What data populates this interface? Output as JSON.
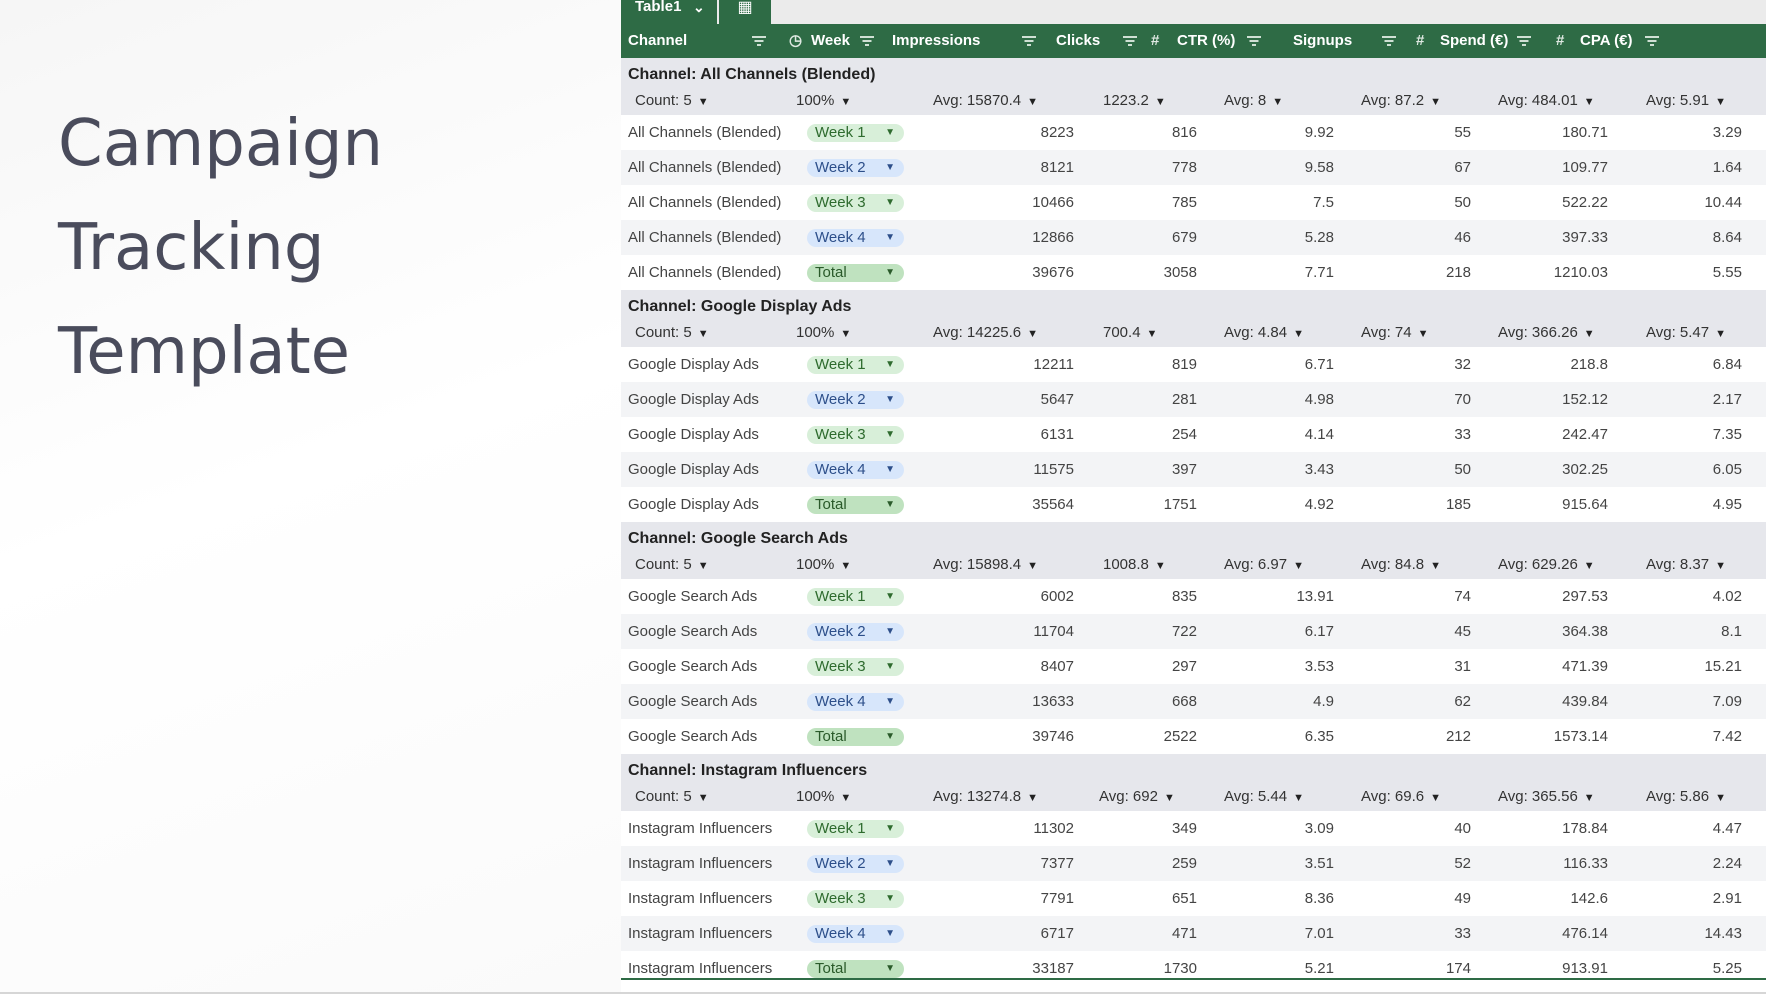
{
  "slide": {
    "title_lines": [
      "Campaign",
      "Tracking",
      "Template"
    ]
  },
  "tabs": {
    "active": "Table1",
    "chevron": "⌄",
    "grid_glyph": "▦"
  },
  "columns": {
    "channel": "Channel",
    "week": "Week",
    "impressions": "Impressions",
    "clicks": "Clicks",
    "ctr": "CTR (%)",
    "signups": "Signups",
    "spend": "Spend (€)",
    "cpa": "CPA (€)"
  },
  "groups": [
    {
      "name": "Channel: All Channels (Blended)",
      "summary": {
        "count": "Count: 5",
        "pct": "100%",
        "impressions": "Avg: 15870.4",
        "clicks": "1223.2",
        "ctr": "Avg: 8",
        "signups": "Avg: 87.2",
        "spend": "Avg: 484.01",
        "cpa": "Avg: 5.91"
      },
      "rows": [
        {
          "channel": "All Channels (Blended)",
          "week": "Week 1",
          "impressions": "8223",
          "clicks": "816",
          "ctr": "9.92",
          "signups": "55",
          "spend": "180.71",
          "cpa": "3.29"
        },
        {
          "channel": "All Channels (Blended)",
          "week": "Week 2",
          "impressions": "8121",
          "clicks": "778",
          "ctr": "9.58",
          "signups": "67",
          "spend": "109.77",
          "cpa": "1.64"
        },
        {
          "channel": "All Channels (Blended)",
          "week": "Week 3",
          "impressions": "10466",
          "clicks": "785",
          "ctr": "7.5",
          "signups": "50",
          "spend": "522.22",
          "cpa": "10.44"
        },
        {
          "channel": "All Channels (Blended)",
          "week": "Week 4",
          "impressions": "12866",
          "clicks": "679",
          "ctr": "5.28",
          "signups": "46",
          "spend": "397.33",
          "cpa": "8.64"
        },
        {
          "channel": "All Channels (Blended)",
          "week": "Total",
          "impressions": "39676",
          "clicks": "3058",
          "ctr": "7.71",
          "signups": "218",
          "spend": "1210.03",
          "cpa": "5.55"
        }
      ]
    },
    {
      "name": "Channel: Google Display Ads",
      "summary": {
        "count": "Count: 5",
        "pct": "100%",
        "impressions": "Avg: 14225.6",
        "clicks": "700.4",
        "ctr": "Avg: 4.84",
        "signups": "Avg: 74",
        "spend": "Avg: 366.26",
        "cpa": "Avg: 5.47"
      },
      "rows": [
        {
          "channel": "Google Display Ads",
          "week": "Week 1",
          "impressions": "12211",
          "clicks": "819",
          "ctr": "6.71",
          "signups": "32",
          "spend": "218.8",
          "cpa": "6.84"
        },
        {
          "channel": "Google Display Ads",
          "week": "Week 2",
          "impressions": "5647",
          "clicks": "281",
          "ctr": "4.98",
          "signups": "70",
          "spend": "152.12",
          "cpa": "2.17"
        },
        {
          "channel": "Google Display Ads",
          "week": "Week 3",
          "impressions": "6131",
          "clicks": "254",
          "ctr": "4.14",
          "signups": "33",
          "spend": "242.47",
          "cpa": "7.35"
        },
        {
          "channel": "Google Display Ads",
          "week": "Week 4",
          "impressions": "11575",
          "clicks": "397",
          "ctr": "3.43",
          "signups": "50",
          "spend": "302.25",
          "cpa": "6.05"
        },
        {
          "channel": "Google Display Ads",
          "week": "Total",
          "impressions": "35564",
          "clicks": "1751",
          "ctr": "4.92",
          "signups": "185",
          "spend": "915.64",
          "cpa": "4.95"
        }
      ]
    },
    {
      "name": "Channel: Google Search Ads",
      "summary": {
        "count": "Count: 5",
        "pct": "100%",
        "impressions": "Avg: 15898.4",
        "clicks": "1008.8",
        "ctr": "Avg: 6.97",
        "signups": "Avg: 84.8",
        "spend": "Avg: 629.26",
        "cpa": "Avg: 8.37"
      },
      "rows": [
        {
          "channel": "Google Search Ads",
          "week": "Week 1",
          "impressions": "6002",
          "clicks": "835",
          "ctr": "13.91",
          "signups": "74",
          "spend": "297.53",
          "cpa": "4.02"
        },
        {
          "channel": "Google Search Ads",
          "week": "Week 2",
          "impressions": "11704",
          "clicks": "722",
          "ctr": "6.17",
          "signups": "45",
          "spend": "364.38",
          "cpa": "8.1"
        },
        {
          "channel": "Google Search Ads",
          "week": "Week 3",
          "impressions": "8407",
          "clicks": "297",
          "ctr": "3.53",
          "signups": "31",
          "spend": "471.39",
          "cpa": "15.21"
        },
        {
          "channel": "Google Search Ads",
          "week": "Week 4",
          "impressions": "13633",
          "clicks": "668",
          "ctr": "4.9",
          "signups": "62",
          "spend": "439.84",
          "cpa": "7.09"
        },
        {
          "channel": "Google Search Ads",
          "week": "Total",
          "impressions": "39746",
          "clicks": "2522",
          "ctr": "6.35",
          "signups": "212",
          "spend": "1573.14",
          "cpa": "7.42"
        }
      ]
    },
    {
      "name": "Channel: Instagram Influencers",
      "summary": {
        "count": "Count: 5",
        "pct": "100%",
        "impressions": "Avg: 13274.8",
        "clicks": "Avg: 692",
        "ctr": "Avg: 5.44",
        "signups": "Avg: 69.6",
        "spend": "Avg: 365.56",
        "cpa": "Avg: 5.86"
      },
      "rows": [
        {
          "channel": "Instagram Influencers",
          "week": "Week 1",
          "impressions": "11302",
          "clicks": "349",
          "ctr": "3.09",
          "signups": "40",
          "spend": "178.84",
          "cpa": "4.47"
        },
        {
          "channel": "Instagram Influencers",
          "week": "Week 2",
          "impressions": "7377",
          "clicks": "259",
          "ctr": "3.51",
          "signups": "52",
          "spend": "116.33",
          "cpa": "2.24"
        },
        {
          "channel": "Instagram Influencers",
          "week": "Week 3",
          "impressions": "7791",
          "clicks": "651",
          "ctr": "8.36",
          "signups": "49",
          "spend": "142.6",
          "cpa": "2.91"
        },
        {
          "channel": "Instagram Influencers",
          "week": "Week 4",
          "impressions": "6717",
          "clicks": "471",
          "ctr": "7.01",
          "signups": "33",
          "spend": "476.14",
          "cpa": "14.43"
        },
        {
          "channel": "Instagram Influencers",
          "week": "Total",
          "impressions": "33187",
          "clicks": "1730",
          "ctr": "5.21",
          "signups": "174",
          "spend": "913.91",
          "cpa": "5.25"
        }
      ]
    }
  ]
}
